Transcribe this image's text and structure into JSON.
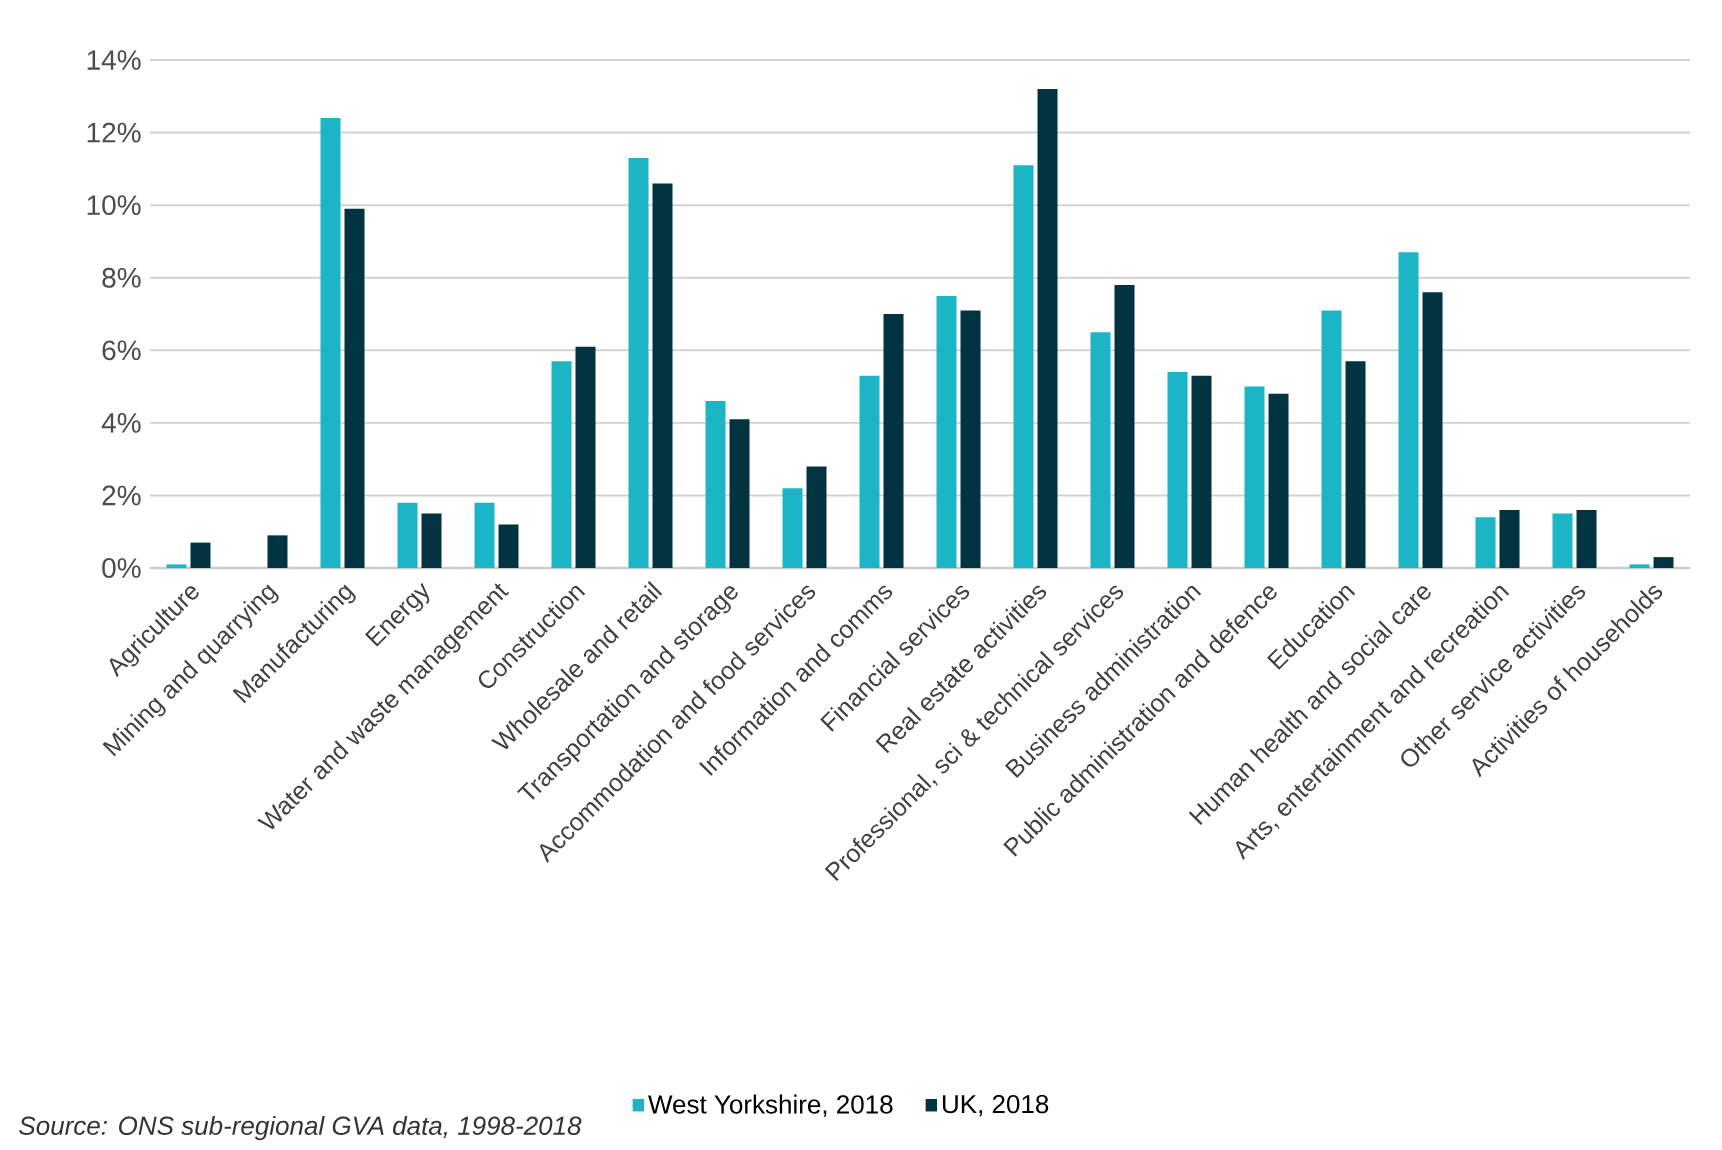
{
  "chart_data": {
    "type": "bar",
    "categories": [
      "Agriculture",
      "Mining and quarrying",
      "Manufacturing",
      "Energy",
      "Water and waste management",
      "Construction",
      "Wholesale and retail",
      "Transportation and storage",
      "Accommodation and food services",
      "Information and comms",
      "Financial services",
      "Real estate activities",
      "Professional, sci & technical services",
      "Business administration",
      "Public administration and defence",
      "Education",
      "Human health and social care",
      "Arts, entertainment and recreation",
      "Other service activities",
      "Activities of households"
    ],
    "series": [
      {
        "name": "West Yorkshire, 2018",
        "color": "#1bb5c5",
        "values": [
          0.1,
          0,
          12.4,
          1.8,
          1.8,
          5.7,
          11.3,
          4.6,
          2.2,
          5.3,
          7.5,
          11.1,
          6.5,
          5.4,
          5.0,
          7.1,
          8.7,
          1.4,
          1.5,
          0.1
        ]
      },
      {
        "name": "UK, 2018",
        "color": "#013341",
        "values": [
          0.7,
          0.9,
          9.9,
          1.5,
          1.2,
          6.1,
          10.6,
          4.1,
          2.8,
          7.0,
          7.1,
          13.2,
          7.8,
          5.3,
          4.8,
          5.7,
          7.6,
          1.6,
          1.6,
          0.3
        ]
      }
    ],
    "ylim": [
      0,
      14
    ],
    "yticks": [
      {
        "value": 0,
        "label": "0%"
      },
      {
        "value": 2,
        "label": "2%"
      },
      {
        "value": 4,
        "label": "4%"
      },
      {
        "value": 6,
        "label": "6%"
      },
      {
        "value": 8,
        "label": "8%"
      },
      {
        "value": 10,
        "label": "10%"
      },
      {
        "value": 12,
        "label": "12%"
      },
      {
        "value": 14,
        "label": "14%"
      }
    ],
    "grid": "y",
    "legend": "bottom",
    "annotations": [
      "Source: ONS sub-regional GVA data, 1998-2018"
    ]
  }
}
